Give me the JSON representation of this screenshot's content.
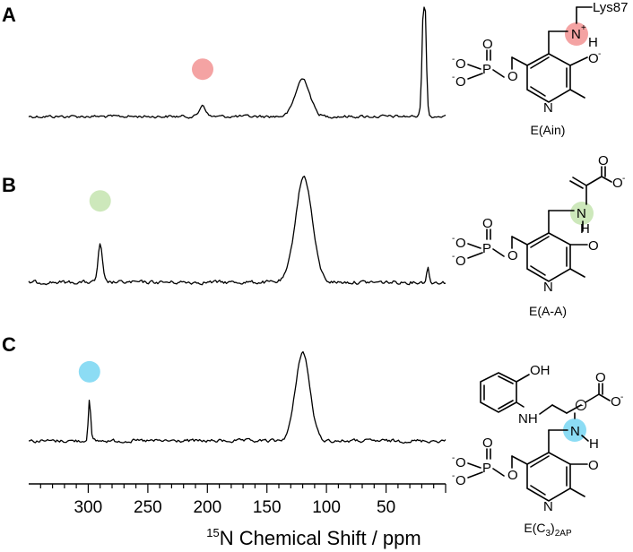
{
  "chart_data": [
    {
      "type": "line",
      "panel": "A",
      "xlim": [
        350,
        0
      ],
      "peaks": [
        {
          "x": 204,
          "height": 0.13,
          "width": 2.5
        },
        {
          "x": 120,
          "height": 0.42,
          "width": 6
        },
        {
          "x": 18,
          "height": 1.5,
          "width": 1.5,
          "clipped": true
        }
      ],
      "marker": {
        "x": 204,
        "color": "#f4a3a3"
      },
      "structure": {
        "caption": "E(Ain)",
        "groups": [
          "Lys87",
          "N",
          "+",
          "H",
          "O",
          "-",
          "P",
          "N"
        ]
      }
    },
    {
      "type": "line",
      "panel": "B",
      "xlim": [
        350,
        0
      ],
      "peaks": [
        {
          "x": 290,
          "height": 0.22,
          "width": 1.8
        },
        {
          "x": 119,
          "height": 0.62,
          "width": 7
        },
        {
          "x": 15,
          "height": 0.09,
          "width": 1
        }
      ],
      "marker": {
        "x": 290,
        "color": "#cde8bb"
      },
      "structure": {
        "caption": "E(A-A)",
        "groups": [
          "N",
          "H",
          "O",
          "-",
          "P"
        ]
      }
    },
    {
      "type": "line",
      "panel": "C",
      "xlim": [
        350,
        0
      ],
      "peaks": [
        {
          "x": 299,
          "height": 0.26,
          "width": 1
        },
        {
          "x": 120,
          "height": 0.55,
          "width": 6
        }
      ],
      "marker": {
        "x": 299,
        "color": "#8cdcf4"
      },
      "structure": {
        "caption_main": "E(C",
        "caption_sub1": "3",
        "caption_mid": ")",
        "caption_sub2": "2AP",
        "groups": [
          "OH",
          "NH",
          "N",
          "H",
          "O",
          "-",
          "P"
        ]
      }
    }
  ],
  "panels": [
    "A",
    "B",
    "C"
  ],
  "x_axis": {
    "ticks": [
      300,
      250,
      200,
      150,
      100,
      50
    ],
    "title_sup": "15",
    "title_main": "N Chemical Shift / ppm"
  },
  "atoms": {
    "lys": "Lys87",
    "n": "N",
    "plus": "+",
    "h": "H",
    "o": "O",
    "minus": "-",
    "p": "P",
    "oh": "OH",
    "nh": "NH",
    "charge_neg": "−"
  }
}
